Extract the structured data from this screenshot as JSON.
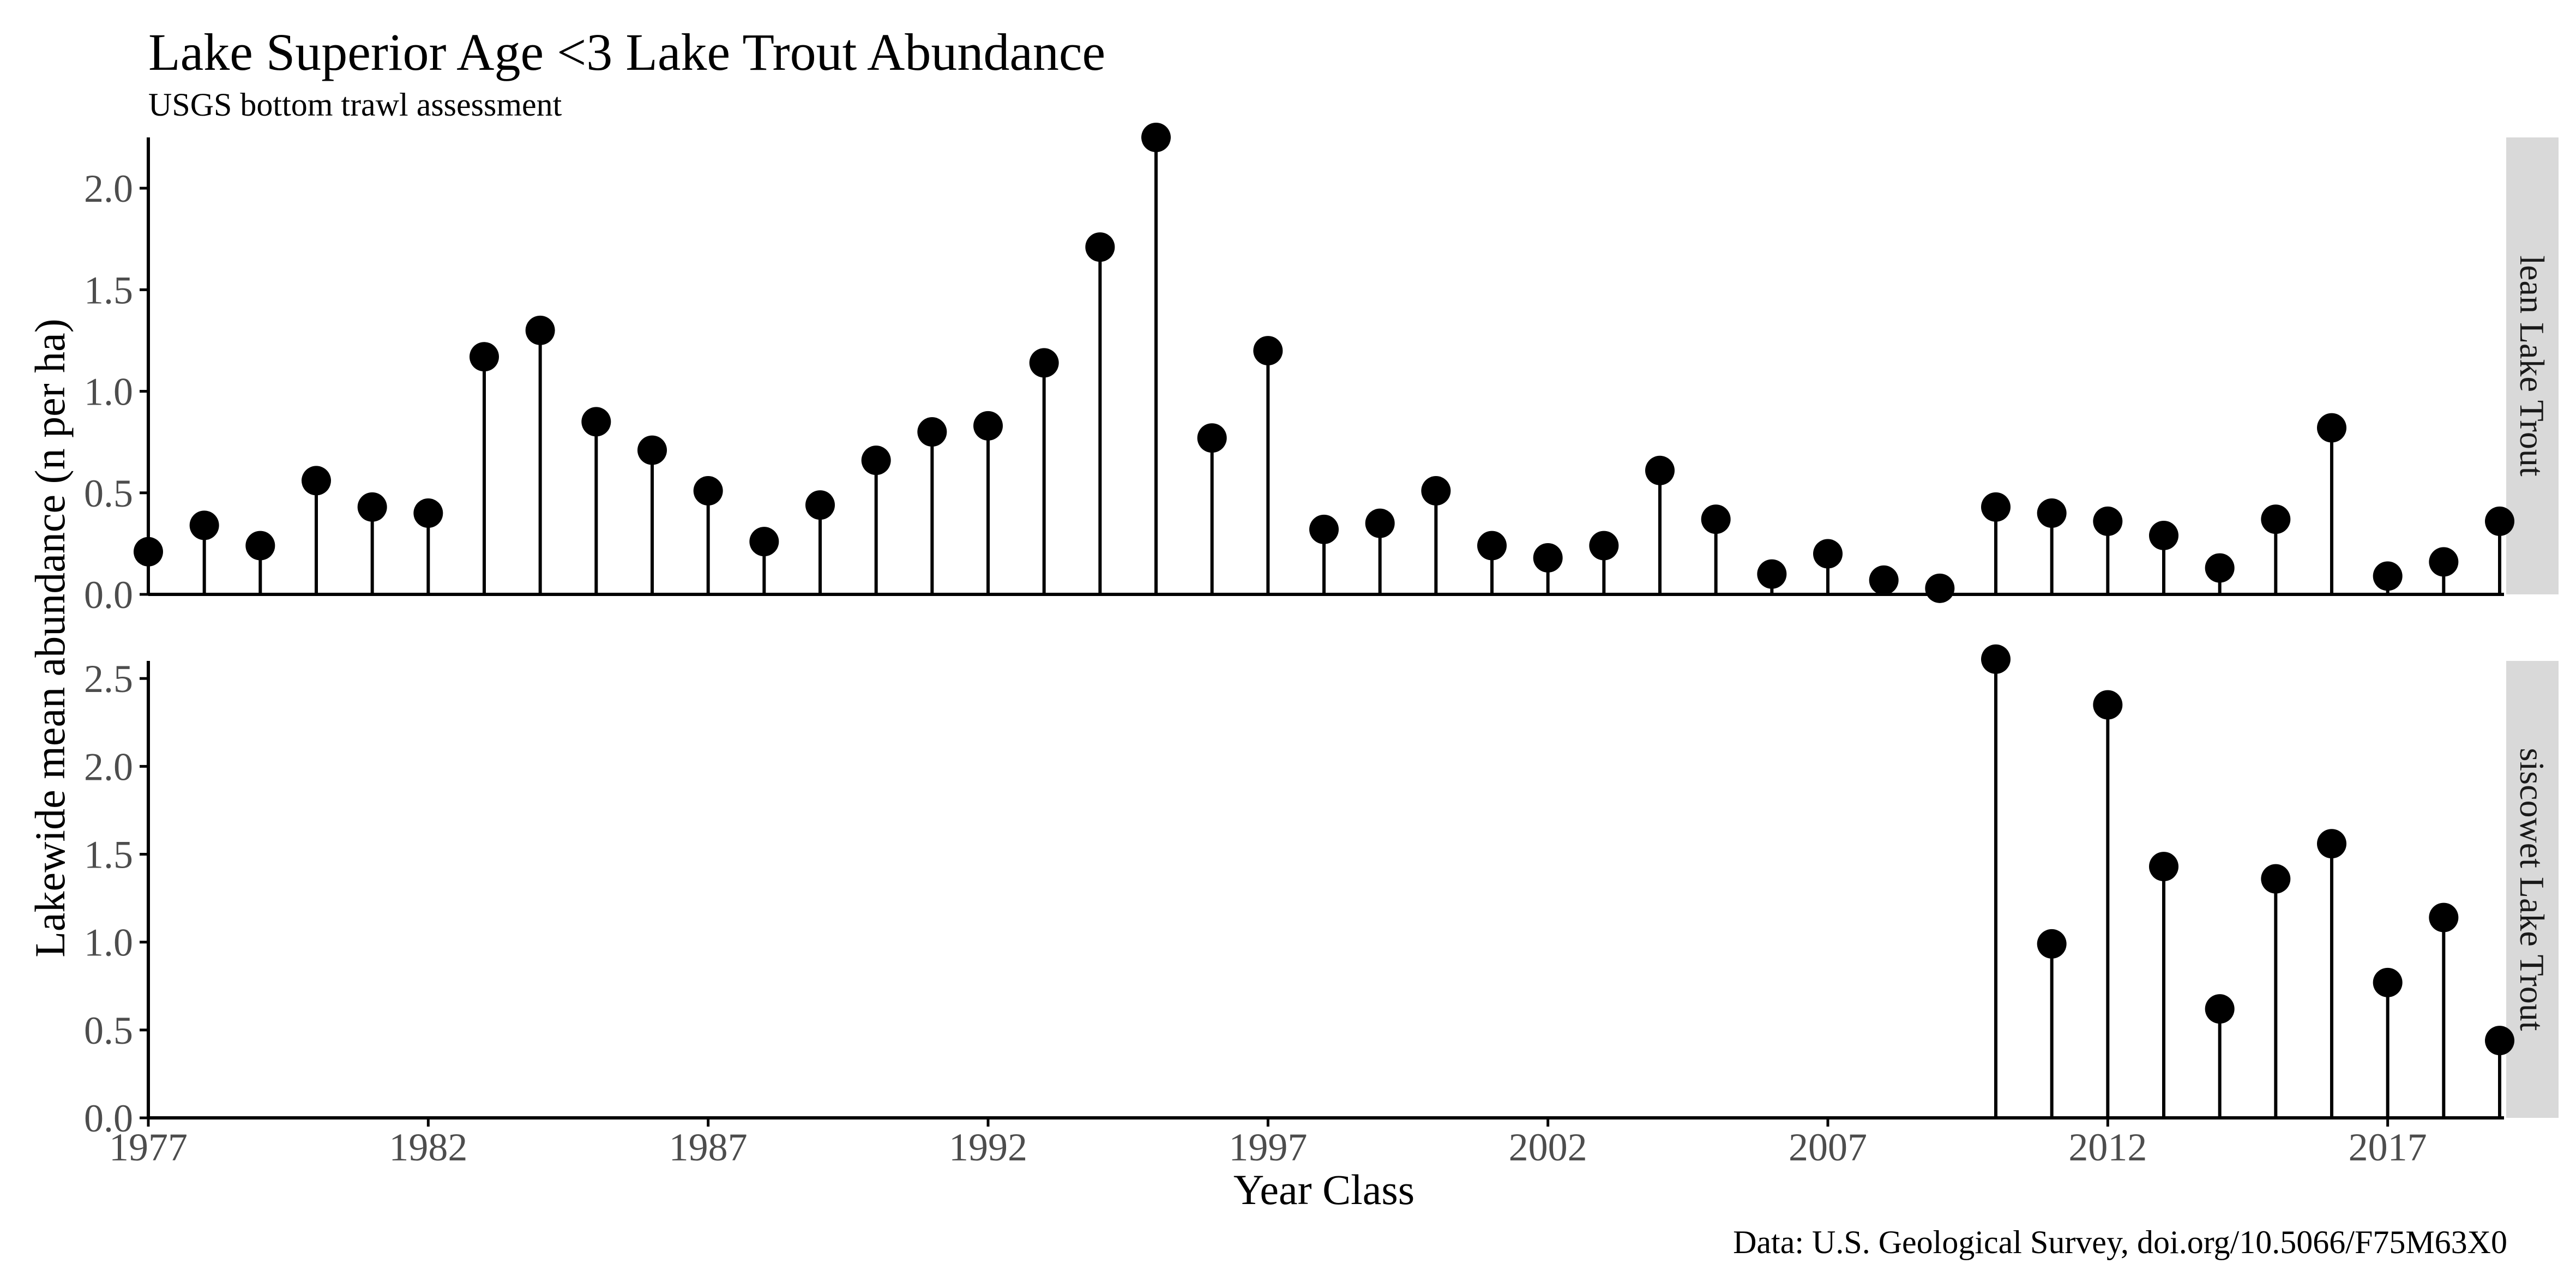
{
  "chart_data": {
    "type": "lollipop",
    "title": "Lake Superior Age <3 Lake Trout Abundance",
    "subtitle": "USGS bottom trawl assessment",
    "xlabel": "Year Class",
    "ylabel": "Lakewide mean abundance (n per ha)",
    "caption": "Data: U.S. Geological Survey, doi.org/10.5066/F75M63X0",
    "xlim": [
      1977,
      2019
    ],
    "x_ticks": [
      1977,
      1982,
      1987,
      1992,
      1997,
      2002,
      2007,
      2012,
      2017
    ],
    "grid": false,
    "colors": {
      "marks": "#000000",
      "strip": "#d9d9d9"
    },
    "panels": [
      {
        "label": "lean Lake Trout",
        "ylim": [
          0,
          2.25
        ],
        "y_ticks": [
          "0.0",
          "0.5",
          "1.0",
          "1.5",
          "2.0"
        ],
        "points": [
          {
            "x": 1977,
            "y": 0.21
          },
          {
            "x": 1978,
            "y": 0.34
          },
          {
            "x": 1979,
            "y": 0.24
          },
          {
            "x": 1980,
            "y": 0.56
          },
          {
            "x": 1981,
            "y": 0.43
          },
          {
            "x": 1982,
            "y": 0.4
          },
          {
            "x": 1983,
            "y": 1.17
          },
          {
            "x": 1984,
            "y": 1.3
          },
          {
            "x": 1985,
            "y": 0.85
          },
          {
            "x": 1986,
            "y": 0.71
          },
          {
            "x": 1987,
            "y": 0.51
          },
          {
            "x": 1988,
            "y": 0.26
          },
          {
            "x": 1989,
            "y": 0.44
          },
          {
            "x": 1990,
            "y": 0.66
          },
          {
            "x": 1991,
            "y": 0.8
          },
          {
            "x": 1992,
            "y": 0.83
          },
          {
            "x": 1993,
            "y": 1.14
          },
          {
            "x": 1994,
            "y": 1.71
          },
          {
            "x": 1995,
            "y": 2.25
          },
          {
            "x": 1996,
            "y": 0.77
          },
          {
            "x": 1997,
            "y": 1.2
          },
          {
            "x": 1998,
            "y": 0.32
          },
          {
            "x": 1999,
            "y": 0.35
          },
          {
            "x": 2000,
            "y": 0.51
          },
          {
            "x": 2001,
            "y": 0.24
          },
          {
            "x": 2002,
            "y": 0.18
          },
          {
            "x": 2003,
            "y": 0.24
          },
          {
            "x": 2004,
            "y": 0.61
          },
          {
            "x": 2005,
            "y": 0.37
          },
          {
            "x": 2006,
            "y": 0.1
          },
          {
            "x": 2007,
            "y": 0.2
          },
          {
            "x": 2008,
            "y": 0.07
          },
          {
            "x": 2009,
            "y": 0.03
          },
          {
            "x": 2010,
            "y": 0.43
          },
          {
            "x": 2011,
            "y": 0.4
          },
          {
            "x": 2012,
            "y": 0.36
          },
          {
            "x": 2013,
            "y": 0.29
          },
          {
            "x": 2014,
            "y": 0.13
          },
          {
            "x": 2015,
            "y": 0.37
          },
          {
            "x": 2016,
            "y": 0.82
          },
          {
            "x": 2017,
            "y": 0.09
          },
          {
            "x": 2018,
            "y": 0.16
          },
          {
            "x": 2019,
            "y": 0.36
          }
        ]
      },
      {
        "label": "siscowet Lake Trout",
        "ylim": [
          0,
          2.6
        ],
        "y_ticks": [
          "0.0",
          "0.5",
          "1.0",
          "1.5",
          "2.0",
          "2.5"
        ],
        "points": [
          {
            "x": 2010,
            "y": 2.61
          },
          {
            "x": 2011,
            "y": 0.99
          },
          {
            "x": 2012,
            "y": 2.35
          },
          {
            "x": 2013,
            "y": 1.43
          },
          {
            "x": 2014,
            "y": 0.62
          },
          {
            "x": 2015,
            "y": 1.36
          },
          {
            "x": 2016,
            "y": 1.56
          },
          {
            "x": 2017,
            "y": 0.77
          },
          {
            "x": 2018,
            "y": 1.14
          },
          {
            "x": 2019,
            "y": 0.44
          }
        ]
      }
    ]
  }
}
